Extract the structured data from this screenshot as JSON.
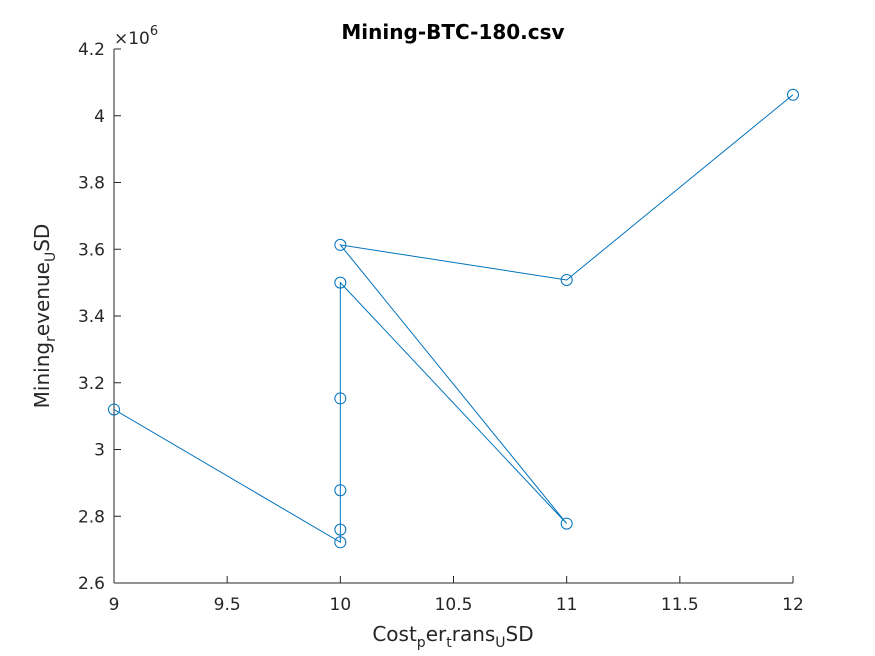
{
  "chart_data": {
    "type": "line",
    "title": "Mining-BTC-180.csv",
    "xlabel": "Cost_per_trans_USD",
    "ylabel": "Mining_revenue_USD",
    "xlim": [
      9,
      12
    ],
    "ylim": [
      2600000,
      4200000
    ],
    "y_exponent_label": "×10",
    "y_exponent_power": "6",
    "xticks": [
      "9",
      "9.5",
      "10",
      "10.5",
      "11",
      "11.5",
      "12"
    ],
    "yticks": [
      "2.6",
      "2.8",
      "3",
      "3.2",
      "3.4",
      "3.6",
      "3.8",
      "4",
      "4.2"
    ],
    "marker": "circle",
    "line_color": "#0072BD",
    "grid": false,
    "series": [
      {
        "x": [
          9,
          10,
          10,
          10,
          10,
          10,
          11,
          10,
          11,
          12
        ],
        "y": [
          3120000,
          2722000,
          2760000,
          2878000,
          3153000,
          3500000,
          2778000,
          3613000,
          3508000,
          4063000
        ]
      }
    ]
  }
}
